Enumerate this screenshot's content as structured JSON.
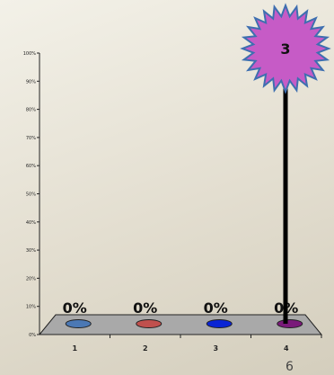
{
  "chart_data": {
    "type": "bar",
    "categories": [
      "1",
      "2",
      "3",
      "4"
    ],
    "values": [
      0,
      0,
      0,
      0
    ],
    "data_labels": [
      "0%",
      "0%",
      "0%",
      "0%"
    ],
    "y_tick_labels": [
      "0%",
      "10%",
      "20%",
      "30%",
      "40%",
      "50%",
      "60%",
      "70%",
      "80%",
      "90%",
      "100%"
    ],
    "ylim": [
      0,
      100
    ],
    "grid": false,
    "series_colors": [
      "#4b78b4",
      "#c0504d",
      "#0a24d4",
      "#7a1a7a"
    ]
  },
  "countdown": {
    "value": "3",
    "colors": {
      "fill": "#c65bc6",
      "edge": "#3e6fb0"
    }
  },
  "page_number": "6"
}
